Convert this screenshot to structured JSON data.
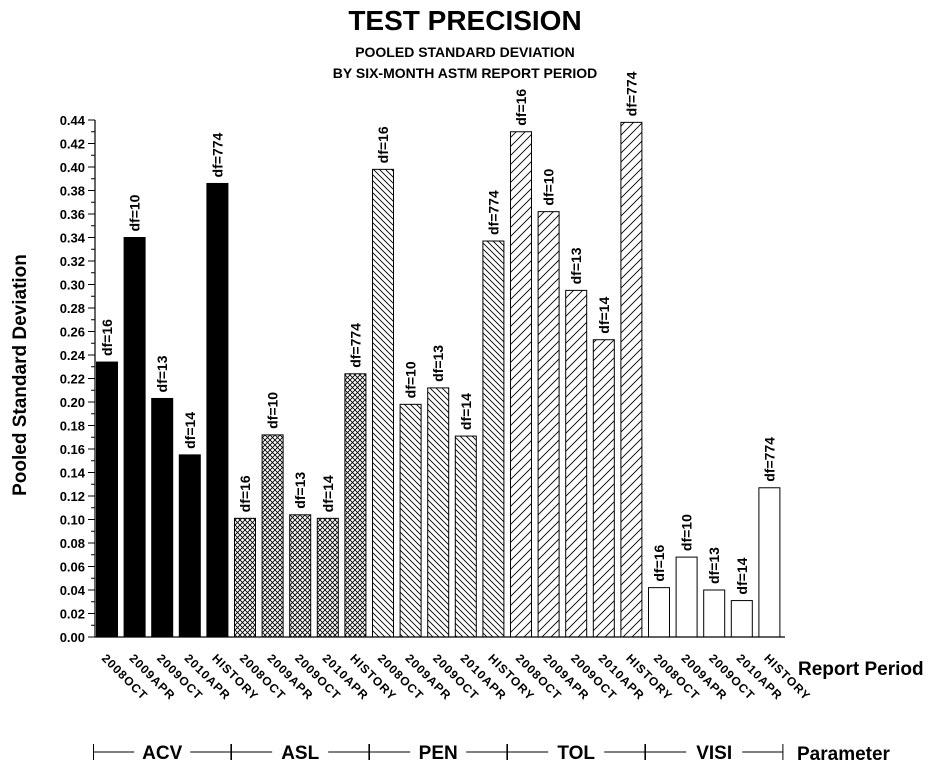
{
  "chart_data": {
    "type": "bar",
    "title": "TEST PRECISION",
    "subtitle_lines": [
      "POOLED STANDARD DEVIATION",
      "BY SIX-MONTH ASTM REPORT PERIOD"
    ],
    "ylabel": "Pooled Standard Deviation",
    "xlabel": "Report Period",
    "group_axis_label": "Parameter",
    "ylim": [
      0,
      0.44
    ],
    "y_ticks": [
      "0.00",
      "0.02",
      "0.04",
      "0.06",
      "0.08",
      "0.10",
      "0.12",
      "0.14",
      "0.16",
      "0.18",
      "0.20",
      "0.22",
      "0.24",
      "0.26",
      "0.28",
      "0.30",
      "0.32",
      "0.34",
      "0.36",
      "0.38",
      "0.40",
      "0.42",
      "0.44"
    ],
    "categories": [
      "2008OCT",
      "2009APR",
      "2009OCT",
      "2010APR",
      "HISTORY"
    ],
    "series": [
      {
        "name": "ACV",
        "pattern": "solid",
        "values": [
          0.234,
          0.34,
          0.203,
          0.155,
          0.386
        ],
        "labels": [
          "df=16",
          "df=10",
          "df=13",
          "df=14",
          "df=774"
        ]
      },
      {
        "name": "ASL",
        "pattern": "crosshatch",
        "values": [
          0.101,
          0.172,
          0.104,
          0.101,
          0.224
        ],
        "labels": [
          "df=16",
          "df=10",
          "df=13",
          "df=14",
          "df=774"
        ]
      },
      {
        "name": "PEN",
        "pattern": "backslash",
        "values": [
          0.398,
          0.198,
          0.212,
          0.171,
          0.337
        ],
        "labels": [
          "df=16",
          "df=10",
          "df=13",
          "df=14",
          "df=774"
        ]
      },
      {
        "name": "TOL",
        "pattern": "slash",
        "values": [
          0.43,
          0.362,
          0.295,
          0.253,
          0.438
        ],
        "labels": [
          "df=16",
          "df=10",
          "df=13",
          "df=14",
          "df=774"
        ]
      },
      {
        "name": "VISI",
        "pattern": "empty",
        "values": [
          0.042,
          0.068,
          0.04,
          0.031,
          0.127
        ],
        "labels": [
          "df=16",
          "df=10",
          "df=13",
          "df=14",
          "df=774"
        ]
      }
    ],
    "legend": "none",
    "grid": false
  }
}
